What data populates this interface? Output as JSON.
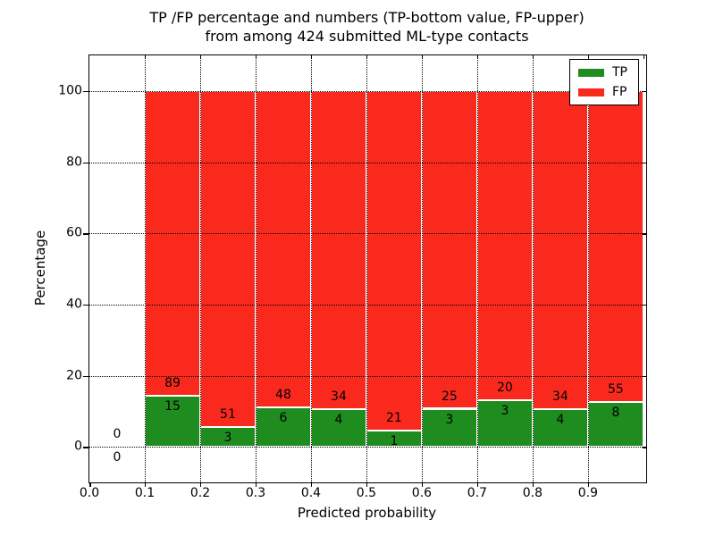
{
  "chart_data": {
    "type": "bar",
    "stacked": true,
    "title_line1": "TP /FP percentage and numbers (TP-bottom value, FP-upper)",
    "title_line2": "from among 424 submitted ML-type contacts",
    "xlabel": "Predicted probability",
    "ylabel": "Percentage",
    "xlim": [
      0.0,
      1.005
    ],
    "ylim": [
      -10,
      110
    ],
    "x_ticks": [
      0.0,
      0.1,
      0.2,
      0.3,
      0.4,
      0.5,
      0.6,
      0.7,
      0.8,
      0.9
    ],
    "x_tick_labels": [
      "0.0",
      "0.1",
      "0.2",
      "0.3",
      "0.4",
      "0.5",
      "0.6",
      "0.7",
      "0.8",
      "0.9"
    ],
    "x_ticks_top": [
      0.1,
      0.2,
      0.3,
      0.4,
      0.5,
      0.6,
      0.7,
      0.8,
      0.9,
      1.0
    ],
    "y_ticks": [
      0,
      20,
      40,
      60,
      80,
      100
    ],
    "y_tick_labels": [
      "0",
      "20",
      "40",
      "60",
      "80",
      "100"
    ],
    "grid_style": "dotted",
    "grid_color": "#000000",
    "bar_edge_color": "#ffffff",
    "total_contacts": 424,
    "legend": {
      "position": "upper-right",
      "entries": [
        {
          "label": "TP",
          "color": "#1f8c1f"
        },
        {
          "label": "FP",
          "color": "#f92a1d"
        }
      ]
    },
    "bins": [
      {
        "x_start": 0.0,
        "x_end": 0.1,
        "tp": 0,
        "fp": 0,
        "tp_pct": null,
        "fp_pct": null
      },
      {
        "x_start": 0.1,
        "x_end": 0.2,
        "tp": 15,
        "fp": 89,
        "tp_pct": 14.42,
        "fp_pct": 85.58
      },
      {
        "x_start": 0.2,
        "x_end": 0.3,
        "tp": 3,
        "fp": 51,
        "tp_pct": 5.56,
        "fp_pct": 94.44
      },
      {
        "x_start": 0.3,
        "x_end": 0.4,
        "tp": 6,
        "fp": 48,
        "tp_pct": 11.11,
        "fp_pct": 88.89
      },
      {
        "x_start": 0.4,
        "x_end": 0.5,
        "tp": 4,
        "fp": 34,
        "tp_pct": 10.53,
        "fp_pct": 89.47
      },
      {
        "x_start": 0.5,
        "x_end": 0.6,
        "tp": 1,
        "fp": 21,
        "tp_pct": 4.55,
        "fp_pct": 95.45
      },
      {
        "x_start": 0.6,
        "x_end": 0.7,
        "tp": 3,
        "fp": 25,
        "tp_pct": 10.71,
        "fp_pct": 89.29
      },
      {
        "x_start": 0.7,
        "x_end": 0.8,
        "tp": 3,
        "fp": 20,
        "tp_pct": 13.04,
        "fp_pct": 86.96
      },
      {
        "x_start": 0.8,
        "x_end": 0.9,
        "tp": 4,
        "fp": 34,
        "tp_pct": 10.53,
        "fp_pct": 89.47
      },
      {
        "x_start": 0.9,
        "x_end": 1.0,
        "tp": 8,
        "fp": 55,
        "tp_pct": 12.7,
        "fp_pct": 87.3
      }
    ]
  }
}
